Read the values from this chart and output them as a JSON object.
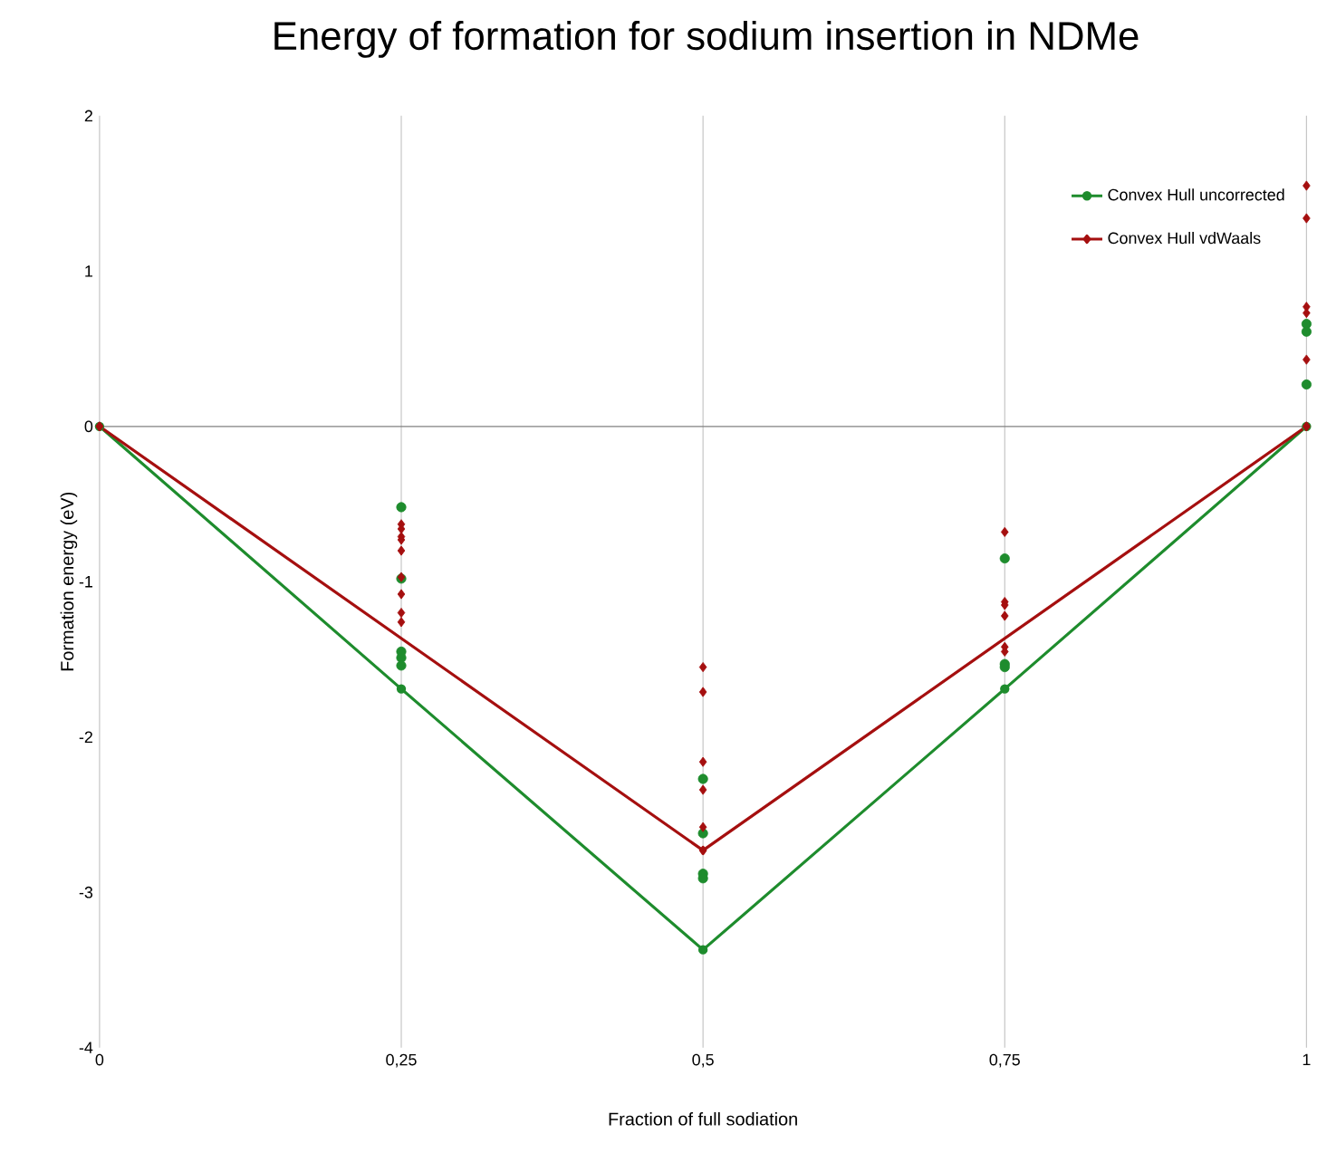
{
  "chart_data": {
    "type": "line",
    "title": "Energy of formation for sodium insertion in NDMe",
    "xlabel": "Fraction of  full sodiation",
    "ylabel": "Formation energy (eV)",
    "xlim": [
      0,
      1
    ],
    "ylim": [
      -4,
      2
    ],
    "xticks": [
      0,
      {
        "value": 0.25,
        "label": "0,25"
      },
      {
        "value": 0.5,
        "label": "0,5"
      },
      {
        "value": 0.75,
        "label": "0,75"
      },
      1
    ],
    "yticks": [
      -4,
      -3,
      -2,
      -1,
      0,
      1,
      2
    ],
    "grid": "x",
    "legend": "top right",
    "ref_lines": [
      {
        "axis": "y",
        "value": 0,
        "color": "#808080"
      }
    ],
    "series": [
      {
        "name": "Convex Hull uncorrected",
        "marker": "circle",
        "color": "#1e8c2d",
        "x": [
          0,
          0.25,
          0.5,
          0.75,
          1
        ],
        "values": [
          0,
          -1.69,
          -3.37,
          -1.69,
          0
        ]
      },
      {
        "name": "Convex Hull vdWaals",
        "marker": "diamond",
        "color": "#a50f0f",
        "x": [
          0,
          0.5,
          1
        ],
        "values": [
          0,
          -2.73,
          0
        ]
      },
      {
        "type": "scatter",
        "marker": "circle",
        "color": "#1e8c2d",
        "x": [
          0.25,
          0.25,
          0.25,
          0.25,
          0.25,
          0.5,
          0.5,
          0.5,
          0.5,
          0.75,
          0.75,
          0.75,
          1,
          1,
          1
        ],
        "values": [
          -0.52,
          -0.98,
          -1.45,
          -1.49,
          -1.54,
          -2.27,
          -2.62,
          -2.88,
          -2.91,
          -0.85,
          -1.53,
          -1.55,
          0.66,
          0.61,
          0.27
        ]
      },
      {
        "type": "scatter",
        "marker": "diamond",
        "color": "#a50f0f",
        "x": [
          0.25,
          0.25,
          0.25,
          0.25,
          0.25,
          0.25,
          0.25,
          0.25,
          0.25,
          0.5,
          0.5,
          0.5,
          0.5,
          0.5,
          0.75,
          0.75,
          0.75,
          0.75,
          0.75,
          0.75,
          1,
          1,
          1,
          1,
          1
        ],
        "values": [
          -0.63,
          -0.66,
          -0.71,
          -0.73,
          -0.8,
          -0.97,
          -1.08,
          -1.2,
          -1.26,
          -1.55,
          -1.71,
          -2.16,
          -2.34,
          -2.58,
          -0.68,
          -1.13,
          -1.15,
          -1.22,
          -1.42,
          -1.45,
          1.55,
          1.34,
          0.77,
          0.73,
          0.43
        ]
      }
    ]
  }
}
